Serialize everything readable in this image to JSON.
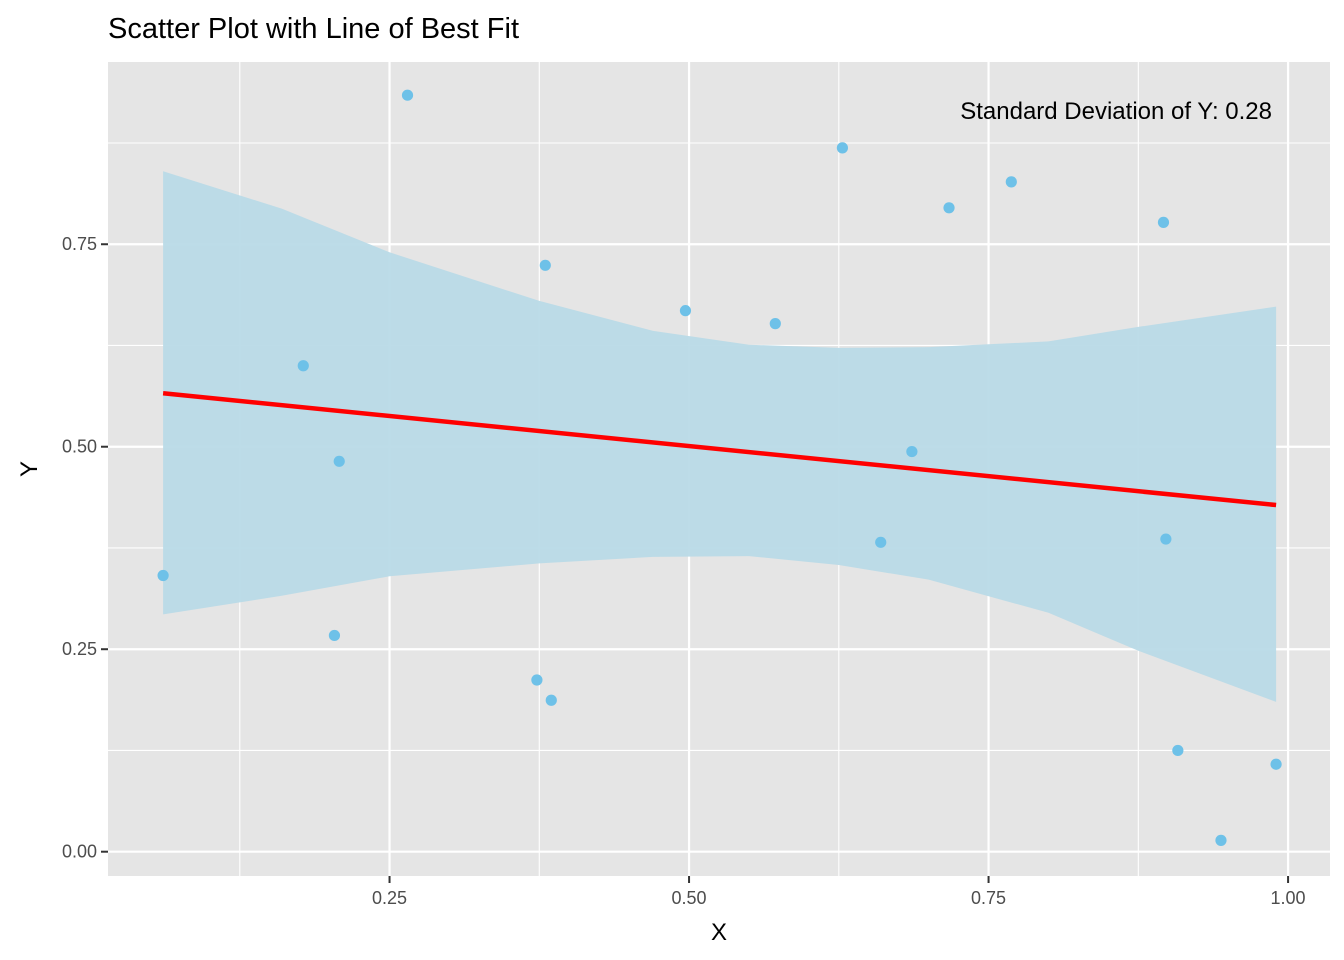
{
  "chart_data": {
    "type": "scatter",
    "title": "Scatter Plot with Line of Best Fit",
    "xlabel": "X",
    "ylabel": "Y",
    "xlim": [
      0.015,
      1.035
    ],
    "ylim": [
      -0.03,
      0.975
    ],
    "x_ticks": [
      {
        "value": 0.25,
        "label": "0.25"
      },
      {
        "value": 0.5,
        "label": "0.50"
      },
      {
        "value": 0.75,
        "label": "0.75"
      },
      {
        "value": 1.0,
        "label": "1.00"
      }
    ],
    "y_ticks": [
      {
        "value": 0.0,
        "label": "0.00"
      },
      {
        "value": 0.25,
        "label": "0.25"
      },
      {
        "value": 0.5,
        "label": "0.50"
      },
      {
        "value": 0.75,
        "label": "0.75"
      }
    ],
    "x_minor_ticks": [
      0.125,
      0.375,
      0.625,
      0.875
    ],
    "y_minor_ticks": [
      0.125,
      0.375,
      0.625,
      0.875
    ],
    "grid": true,
    "points": [
      {
        "x": 0.061,
        "y": 0.341
      },
      {
        "x": 0.178,
        "y": 0.6
      },
      {
        "x": 0.204,
        "y": 0.267
      },
      {
        "x": 0.208,
        "y": 0.482
      },
      {
        "x": 0.265,
        "y": 0.934
      },
      {
        "x": 0.373,
        "y": 0.212
      },
      {
        "x": 0.38,
        "y": 0.724
      },
      {
        "x": 0.385,
        "y": 0.187
      },
      {
        "x": 0.497,
        "y": 0.668
      },
      {
        "x": 0.572,
        "y": 0.652
      },
      {
        "x": 0.628,
        "y": 0.869
      },
      {
        "x": 0.66,
        "y": 0.382
      },
      {
        "x": 0.686,
        "y": 0.494
      },
      {
        "x": 0.717,
        "y": 0.795
      },
      {
        "x": 0.769,
        "y": 0.827
      },
      {
        "x": 0.896,
        "y": 0.777
      },
      {
        "x": 0.898,
        "y": 0.386
      },
      {
        "x": 0.908,
        "y": 0.125
      },
      {
        "x": 0.944,
        "y": 0.014
      },
      {
        "x": 0.99,
        "y": 0.108
      }
    ],
    "fit_line": {
      "x": [
        0.061,
        0.99
      ],
      "y": [
        0.566,
        0.428
      ]
    },
    "confidence_band": [
      {
        "x": 0.061,
        "lower": 0.293,
        "upper": 0.84
      },
      {
        "x": 0.16,
        "lower": 0.316,
        "upper": 0.794
      },
      {
        "x": 0.25,
        "lower": 0.34,
        "upper": 0.74
      },
      {
        "x": 0.375,
        "lower": 0.356,
        "upper": 0.68
      },
      {
        "x": 0.47,
        "lower": 0.364,
        "upper": 0.643
      },
      {
        "x": 0.55,
        "lower": 0.365,
        "upper": 0.626
      },
      {
        "x": 0.625,
        "lower": 0.354,
        "upper": 0.622
      },
      {
        "x": 0.7,
        "lower": 0.336,
        "upper": 0.623
      },
      {
        "x": 0.8,
        "lower": 0.295,
        "upper": 0.63
      },
      {
        "x": 0.875,
        "lower": 0.248,
        "upper": 0.648
      },
      {
        "x": 0.99,
        "lower": 0.185,
        "upper": 0.673
      }
    ],
    "annotation": "Standard Deviation of Y: 0.28",
    "colors": {
      "panel": "#e5e5e5",
      "grid": "#ffffff",
      "points": "#6ec1e8",
      "band": "#b9dae7",
      "line": "#ff0000"
    }
  }
}
